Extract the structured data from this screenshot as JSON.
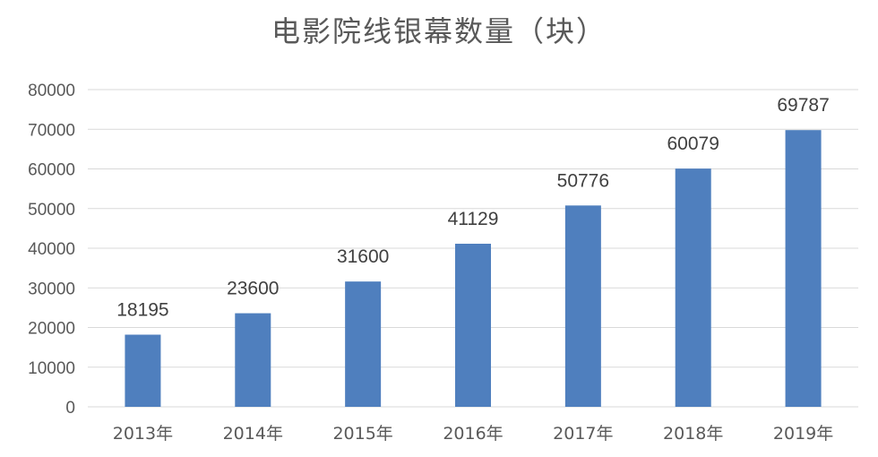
{
  "chart_data": {
    "type": "bar",
    "title": "电影院线银幕数量（块）",
    "xlabel": "",
    "ylabel": "",
    "categories": [
      "2013年",
      "2014年",
      "2015年",
      "2016年",
      "2017年",
      "2018年",
      "2019年"
    ],
    "values": [
      18195,
      23600,
      31600,
      41129,
      50776,
      60079,
      69787
    ],
    "data_labels": [
      "18195",
      "23600",
      "31600",
      "41129",
      "50776",
      "60079",
      "69787"
    ],
    "ylim": [
      0,
      80000
    ],
    "yticks": [
      0,
      10000,
      20000,
      30000,
      40000,
      50000,
      60000,
      70000,
      80000
    ],
    "ytick_labels": [
      "0",
      "10000",
      "20000",
      "30000",
      "40000",
      "50000",
      "60000",
      "70000",
      "80000"
    ],
    "grid": true,
    "legend": "none",
    "bar_color": "#4F7FBE"
  }
}
